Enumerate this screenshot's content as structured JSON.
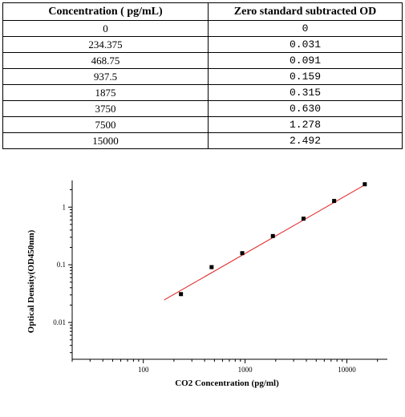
{
  "table": {
    "headers": [
      "Concentration ( pg/mL)",
      "Zero standard subtracted OD"
    ],
    "rows": [
      [
        "0",
        "0"
      ],
      [
        "234.375",
        "0.031"
      ],
      [
        "468.75",
        "0.091"
      ],
      [
        "937.5",
        "0.159"
      ],
      [
        "1875",
        "0.315"
      ],
      [
        "3750",
        "0.630"
      ],
      [
        "7500",
        "1.278"
      ],
      [
        "15000",
        "2.492"
      ]
    ]
  },
  "chart_data": {
    "type": "scatter",
    "xlabel": "CO2 Concentration (pg/ml)",
    "ylabel": "Optical Density(OD450nm)",
    "x_scale": "log",
    "y_scale": "log",
    "xlim": [
      20,
      25000
    ],
    "ylim": [
      0.0023,
      2.9
    ],
    "x_ticks": [
      100,
      1000,
      10000
    ],
    "x_tick_labels": [
      "100",
      "1000",
      "10000"
    ],
    "y_ticks": [
      0.01,
      0.1,
      1
    ],
    "y_tick_labels": [
      "0.01",
      "0.1",
      "1"
    ],
    "grid": false,
    "points": [
      {
        "x": 234.375,
        "y": 0.031
      },
      {
        "x": 468.75,
        "y": 0.091
      },
      {
        "x": 937.5,
        "y": 0.159
      },
      {
        "x": 1875,
        "y": 0.315
      },
      {
        "x": 3750,
        "y": 0.63
      },
      {
        "x": 7500,
        "y": 1.278
      },
      {
        "x": 15000,
        "y": 2.492
      }
    ],
    "fit_line": {
      "x": [
        160,
        15000
      ],
      "y": [
        0.0245,
        2.43
      ]
    },
    "colors": {
      "points": "#000000",
      "fit_line": "#e02020",
      "axes": "#000000"
    }
  }
}
